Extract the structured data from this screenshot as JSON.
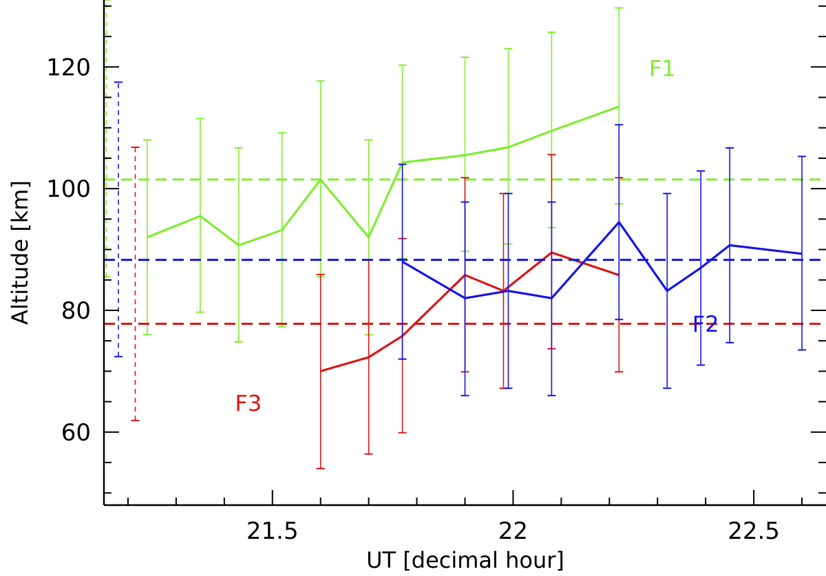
{
  "chart_data": {
    "type": "line",
    "title": "",
    "xlabel": "UT [decimal hour]",
    "ylabel": "Altitude [km]",
    "xlim": [
      21.15,
      22.65
    ],
    "ylim": [
      48,
      131
    ],
    "x_ticks": [
      21.5,
      22,
      22.5
    ],
    "x_tick_labels": [
      "21.5",
      "22",
      "22.5"
    ],
    "y_ticks": [
      60,
      80,
      100,
      120
    ],
    "y_tick_labels": [
      "60",
      "80",
      "100",
      "120"
    ],
    "grid": false,
    "legend": "none",
    "series": [
      {
        "name": "F1",
        "color": "#80ec30",
        "x": [
          21.24,
          21.35,
          21.43,
          21.52,
          21.6,
          21.7,
          21.77,
          21.9,
          21.99,
          22.08,
          22.22
        ],
        "y": [
          92,
          95.5,
          90.7,
          93.2,
          101.5,
          92,
          104.3,
          105.5,
          106.8,
          109.5,
          113.5
        ],
        "err_low": [
          76,
          79.7,
          74.8,
          77.3,
          85.5,
          76,
          88.5,
          89.7,
          90.9,
          93.6,
          97.5
        ],
        "err_high": [
          108,
          111.5,
          106.7,
          109.2,
          117.7,
          108,
          120.3,
          121.6,
          123,
          125.7,
          129.7
        ],
        "mean": 101.5,
        "mean_err_low": 85.5,
        "mean_err_high": 131,
        "mean_err_x": 21.155
      },
      {
        "name": "F2",
        "color": "#1414e6",
        "x": [
          21.77,
          21.9,
          21.99,
          22.08,
          22.22,
          22.32,
          22.39,
          22.45,
          22.6
        ],
        "y": [
          88,
          82,
          83.2,
          82,
          94.5,
          83.2,
          87,
          90.7,
          89.3
        ],
        "err_low": [
          72,
          66,
          67.2,
          66,
          78.5,
          67.2,
          71,
          74.7,
          73.5
        ],
        "err_high": [
          104,
          97.8,
          99.2,
          97.8,
          110.5,
          99.2,
          102.9,
          106.7,
          105.3
        ],
        "mean": 88.3,
        "mean_err_low": 72.4,
        "mean_err_high": 117.5,
        "mean_err_x": 21.18
      },
      {
        "name": "F3",
        "color": "#dc1414",
        "x": [
          21.6,
          21.7,
          21.77,
          21.9,
          21.98,
          22.08,
          22.22
        ],
        "y": [
          70,
          72.3,
          75.8,
          85.8,
          83.2,
          89.5,
          85.8
        ],
        "err_low": [
          54,
          56.4,
          59.9,
          69.9,
          67.2,
          73.7,
          69.9
        ],
        "err_high": [
          85.9,
          88.3,
          91.8,
          101.8,
          99.2,
          105.6,
          101.8
        ],
        "mean": 77.8,
        "mean_err_low": 61.9,
        "mean_err_high": 106.8,
        "mean_err_x": 21.215
      }
    ],
    "annotations": [
      {
        "text": "F1",
        "x": 22.31,
        "y": 118.5,
        "color": "#80ec30"
      },
      {
        "text": "F2",
        "x": 22.4,
        "y": 76.5,
        "color": "#1414e6"
      },
      {
        "text": "F3",
        "x": 21.45,
        "y": 63.5,
        "color": "#dc1414"
      }
    ]
  }
}
